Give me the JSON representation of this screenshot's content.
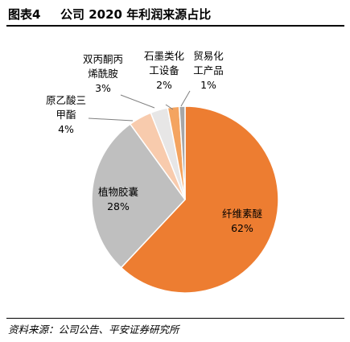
{
  "header": {
    "figure_label": "图表4",
    "title": "公司 2020 年利润来源占比"
  },
  "footer": {
    "source": "资料来源：公司公告、平安证券研究所"
  },
  "chart_data": {
    "type": "pie",
    "title": "公司 2020 年利润来源占比",
    "slices": [
      {
        "label_lines": [
          "纤维素醚",
          "62%"
        ],
        "value": 62,
        "color": "#ed7d31"
      },
      {
        "label_lines": [
          "植物胶囊",
          "28%"
        ],
        "value": 28,
        "color": "#bfbfbf"
      },
      {
        "label_lines": [
          "原乙酸三",
          "甲酯",
          "4%"
        ],
        "value": 4,
        "color": "#f8cbad"
      },
      {
        "label_lines": [
          "双丙酮丙",
          "烯酰胺",
          "3%"
        ],
        "value": 3,
        "color": "#e7e6e6"
      },
      {
        "label_lines": [
          "石墨类化",
          "工设备",
          "2%"
        ],
        "value": 2,
        "color": "#f4a460"
      },
      {
        "label_lines": [
          "贸易化",
          "工产品",
          "1%"
        ],
        "value": 1,
        "color": "#a6a6a6"
      }
    ]
  }
}
